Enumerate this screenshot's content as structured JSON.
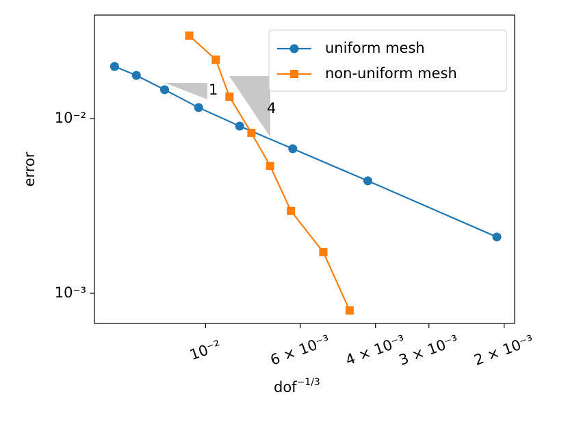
{
  "chart_data": {
    "type": "line",
    "x_label": {
      "base": "dof",
      "exponent": "−1/3"
    },
    "y_label": "error",
    "x_log": true,
    "y_log": true,
    "x_inverted": true,
    "xlim": [
      0.0182,
      0.00189
    ],
    "ylim": [
      0.0391,
      0.000672
    ],
    "xticks": [
      {
        "value": 0.01,
        "label": "10⁻²"
      },
      {
        "value": 0.006,
        "label": "6 × 10⁻³"
      },
      {
        "value": 0.004,
        "label": "4 × 10⁻³"
      },
      {
        "value": 0.003,
        "label": "3 × 10⁻³"
      },
      {
        "value": 0.002,
        "label": "2 × 10⁻³"
      }
    ],
    "yticks": [
      {
        "value": 0.01,
        "label": "10⁻²"
      },
      {
        "value": 0.001,
        "label": "10⁻³"
      }
    ],
    "legend": "upper right",
    "series": [
      {
        "name": "uniform mesh",
        "color": "#1f77b4",
        "marker": "circle",
        "x": [
          0.01633,
          0.01452,
          0.01247,
          0.01038,
          0.00832,
          0.00625,
          0.00417,
          0.00208
        ],
        "values": [
          0.01986,
          0.01766,
          0.01463,
          0.01156,
          0.00905,
          0.00672,
          0.0044,
          0.0021
        ]
      },
      {
        "name": "non-uniform mesh",
        "color": "#ff7f0e",
        "marker": "square",
        "x": [
          0.01092,
          0.00946,
          0.00879,
          0.00781,
          0.00706,
          0.00631,
          0.0053,
          0.0046
        ],
        "values": [
          0.02985,
          0.02173,
          0.01334,
          0.00828,
          0.00536,
          0.00296,
          0.00172,
          0.000798
        ]
      }
    ],
    "annotations": [
      "1",
      "4"
    ]
  }
}
